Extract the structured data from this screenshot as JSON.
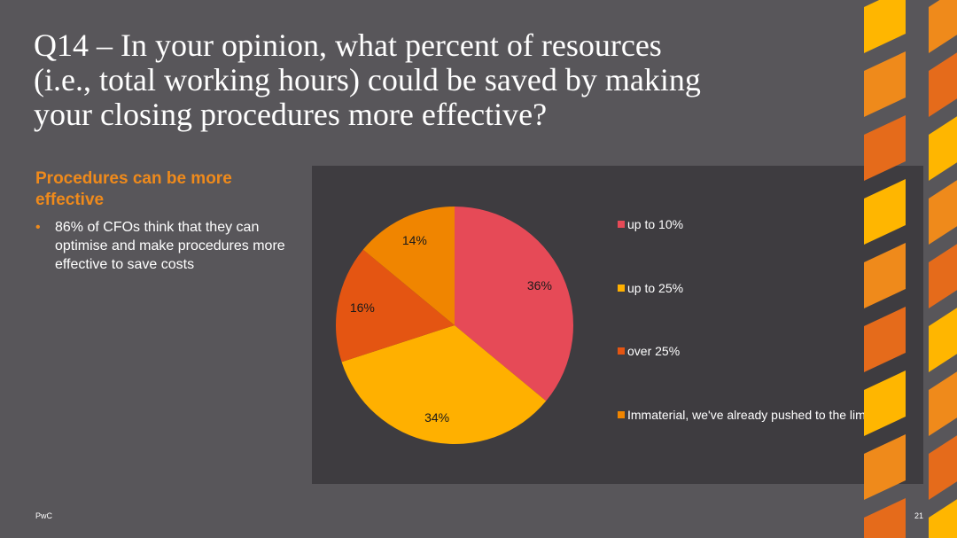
{
  "slide": {
    "title": "Q14 – In your opinion, what percent of resources\n(i.e., total working hours) could be saved by making\nyour closing procedures more effective?",
    "subheading": "Procedures can be more effective",
    "bullets": [
      "86% of CFOs think that they can optimise and make procedures more effective to save costs"
    ],
    "bullet_symbol": "•",
    "footer_brand": "PwC",
    "page_number": "21"
  },
  "colors": {
    "background": "#58565a",
    "panel": "#3e3c40",
    "accent": "#ef8a1b",
    "decor": [
      "#ffb600",
      "#ef8a1b",
      "#e56b1b"
    ]
  },
  "chart_data": {
    "type": "pie",
    "title": "",
    "categories": [
      "up to 10%",
      "up to 25%",
      "over 25%",
      "Immaterial, we've already pushed to the limit"
    ],
    "values": [
      36,
      34,
      16,
      14
    ],
    "labels": [
      "36%",
      "34%",
      "16%",
      "14%"
    ],
    "colors": [
      "#e64a57",
      "#ffb000",
      "#e45512",
      "#f08500"
    ],
    "legend_position": "right"
  }
}
